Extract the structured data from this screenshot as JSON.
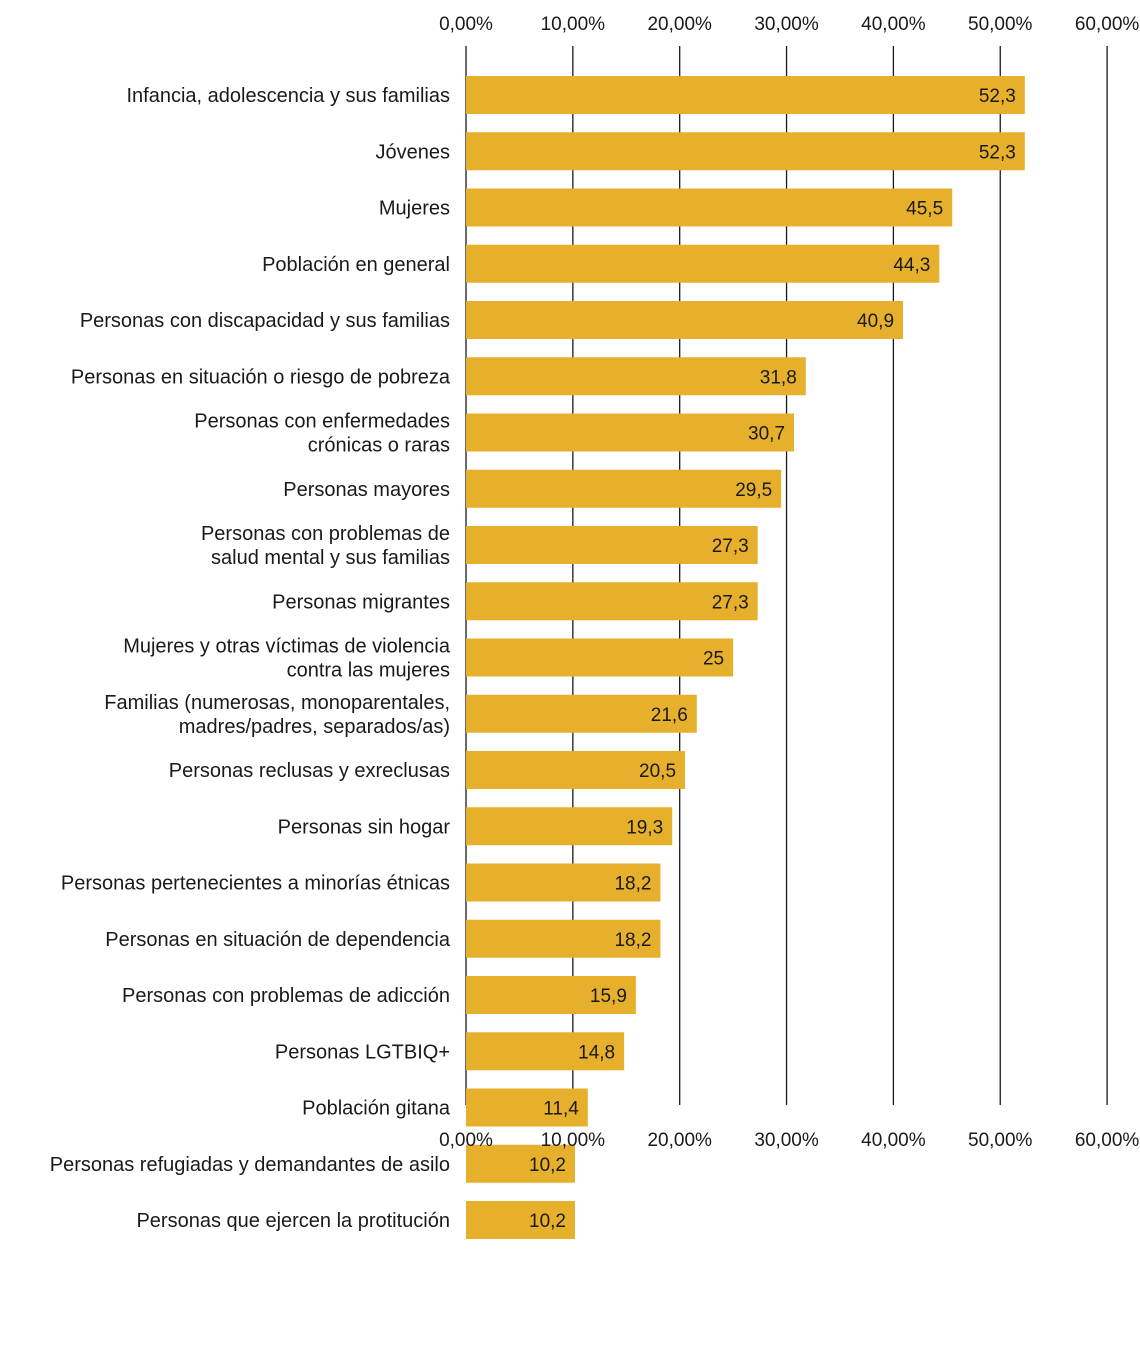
{
  "chart_data": {
    "type": "bar",
    "orientation": "horizontal",
    "categories": [
      [
        "Infancia, adolescencia y sus familias"
      ],
      [
        "Jóvenes"
      ],
      [
        "Mujeres"
      ],
      [
        "Población en general"
      ],
      [
        "Personas con discapacidad y sus familias"
      ],
      [
        "Personas en situación o riesgo de pobreza"
      ],
      [
        "Personas con enfermedades",
        "crónicas o raras"
      ],
      [
        "Personas mayores"
      ],
      [
        "Personas con problemas de",
        "salud mental y sus familias"
      ],
      [
        "Personas migrantes"
      ],
      [
        "Mujeres y otras víctimas de violencia",
        "contra las mujeres"
      ],
      [
        "Familias (numerosas, monoparentales,",
        "madres/padres, separados/as)"
      ],
      [
        "Personas reclusas y exreclusas"
      ],
      [
        "Personas sin hogar"
      ],
      [
        "Personas pertenecientes a minorías étnicas"
      ],
      [
        "Personas en situación de dependencia"
      ],
      [
        "Personas con problemas de adicción"
      ],
      [
        "Personas LGTBIQ+"
      ],
      [
        "Población gitana"
      ],
      [
        "Personas refugiadas y demandantes de asilo"
      ],
      [
        "Personas que ejercen la protitución"
      ]
    ],
    "values": [
      52.3,
      52.3,
      45.5,
      44.3,
      40.9,
      31.8,
      30.7,
      29.5,
      27.3,
      27.3,
      25,
      21.6,
      20.5,
      19.3,
      18.2,
      18.2,
      15.9,
      14.8,
      11.4,
      10.2,
      10.2
    ],
    "value_labels": [
      "52,3",
      "52,3",
      "45,5",
      "44,3",
      "40,9",
      "31,8",
      "30,7",
      "29,5",
      "27,3",
      "27,3",
      "25",
      "21,6",
      "20,5",
      "19,3",
      "18,2",
      "18,2",
      "15,9",
      "14,8",
      "11,4",
      "10,2",
      "10,2"
    ],
    "xticks": [
      0,
      10,
      20,
      30,
      40,
      50,
      60
    ],
    "xtick_labels": [
      "0,00%",
      "10,00%",
      "20,00%",
      "30,00%",
      "40,00%",
      "50,00%",
      "60,00%"
    ],
    "xlim": [
      0,
      60
    ],
    "axis_labels_position": "top and bottom",
    "grid": true,
    "bar_color": "#E6B02C",
    "gridline_color": "#1A1A1A",
    "text_color": "#1A1A1A"
  }
}
